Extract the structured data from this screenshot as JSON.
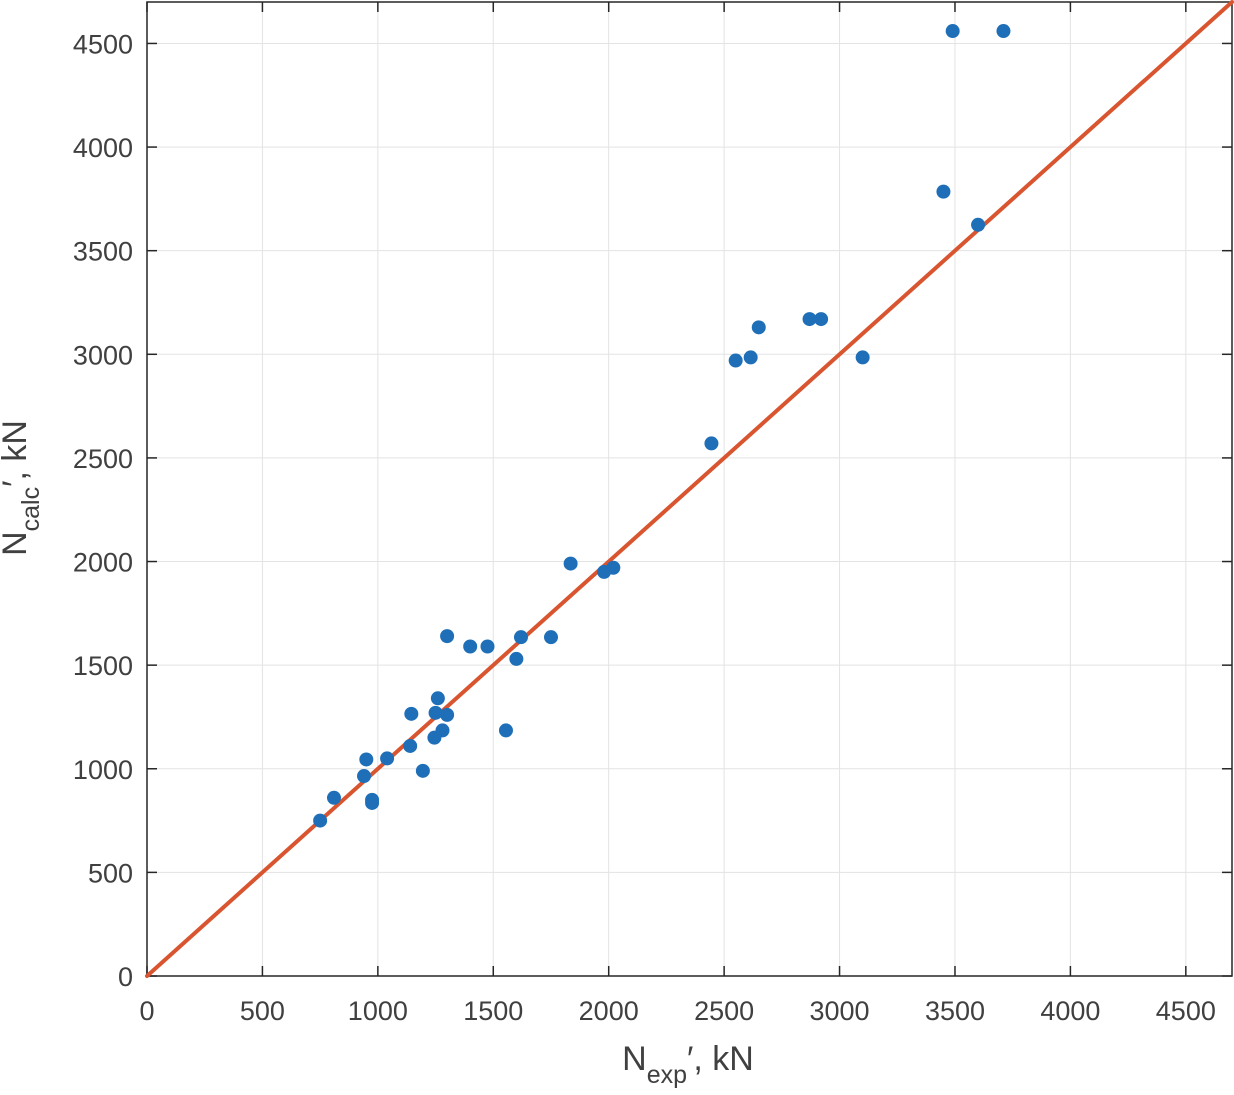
{
  "chart_data": {
    "type": "scatter",
    "title": "",
    "xlabel": {
      "main": "N",
      "sub": "exp",
      "rest": "′, kN"
    },
    "ylabel": {
      "main": "N",
      "sub": "calc",
      "rest": "′, kN"
    },
    "xlim": [
      0,
      4700
    ],
    "ylim": [
      0,
      4700
    ],
    "xticks": [
      0,
      500,
      1000,
      1500,
      2000,
      2500,
      3000,
      3500,
      4000,
      4500
    ],
    "yticks": [
      0,
      500,
      1000,
      1500,
      2000,
      2500,
      3000,
      3500,
      4000,
      4500
    ],
    "grid": true,
    "colors": {
      "points": "#1f6fb8",
      "line": "#d95530",
      "grid": "#e3e3e3",
      "axis": "#262626"
    },
    "reference_line": {
      "from": [
        0,
        0
      ],
      "to": [
        4700,
        4700
      ]
    },
    "series": [
      {
        "values": [
          {
            "x": 750,
            "y": 750
          },
          {
            "x": 810,
            "y": 860
          },
          {
            "x": 940,
            "y": 965
          },
          {
            "x": 950,
            "y": 1045
          },
          {
            "x": 975,
            "y": 850
          },
          {
            "x": 975,
            "y": 835
          },
          {
            "x": 1040,
            "y": 1050
          },
          {
            "x": 1140,
            "y": 1110
          },
          {
            "x": 1145,
            "y": 1265
          },
          {
            "x": 1195,
            "y": 990
          },
          {
            "x": 1245,
            "y": 1150
          },
          {
            "x": 1250,
            "y": 1270
          },
          {
            "x": 1260,
            "y": 1340
          },
          {
            "x": 1280,
            "y": 1185
          },
          {
            "x": 1300,
            "y": 1260
          },
          {
            "x": 1300,
            "y": 1640
          },
          {
            "x": 1400,
            "y": 1590
          },
          {
            "x": 1475,
            "y": 1590
          },
          {
            "x": 1555,
            "y": 1185
          },
          {
            "x": 1600,
            "y": 1530
          },
          {
            "x": 1620,
            "y": 1635
          },
          {
            "x": 1750,
            "y": 1635
          },
          {
            "x": 1835,
            "y": 1990
          },
          {
            "x": 1980,
            "y": 1950
          },
          {
            "x": 2020,
            "y": 1970
          },
          {
            "x": 2445,
            "y": 2570
          },
          {
            "x": 2550,
            "y": 2970
          },
          {
            "x": 2615,
            "y": 2985
          },
          {
            "x": 2650,
            "y": 3130
          },
          {
            "x": 2870,
            "y": 3170
          },
          {
            "x": 2920,
            "y": 3170
          },
          {
            "x": 3100,
            "y": 2985
          },
          {
            "x": 3450,
            "y": 3785
          },
          {
            "x": 3490,
            "y": 4560
          },
          {
            "x": 3600,
            "y": 3625
          },
          {
            "x": 3710,
            "y": 4560
          }
        ]
      }
    ]
  }
}
